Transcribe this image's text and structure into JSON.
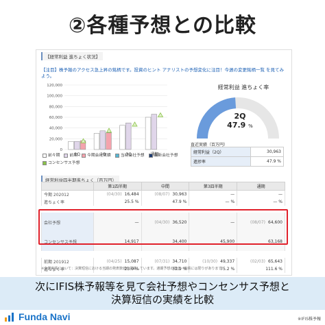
{
  "title": "②各種予想との比較",
  "panel": {
    "heading": "【経常利益 進ちょく状況】",
    "note": "【注目】株予報のアクセス急上昇の銘柄です。投資のヒント アナリストの予想変化に注目！今週の変更銘柄一覧 を見てみよう。",
    "bar_chart": {
      "yticks": [
        "120,000",
        "100,000",
        "80,000",
        "60,000",
        "40,000",
        "20,000",
        "0"
      ],
      "xticks": [
        "1Q",
        "2Q",
        "3Q",
        "通期"
      ]
    },
    "legend": [
      {
        "label": "前々期",
        "color": "#ffffff"
      },
      {
        "label": "前期",
        "color": "#e0d6ea"
      },
      {
        "label": "今期会社実績",
        "color": "#f4a3ad"
      },
      {
        "label": "当初会社予想",
        "color": "#57b7d4"
      },
      {
        "label": "最新会社予想",
        "color": "#1f3e73"
      },
      {
        "label": "コンセンサス予想",
        "color": "#8bc34a"
      }
    ],
    "gauge": {
      "title": "経常利益 進ちょく率",
      "quarter": "2Q",
      "value": "47.9",
      "unit": "%",
      "fraction": 0.479,
      "fill": "#6a9bdc",
      "track": "#e6e6e6"
    },
    "progress": {
      "heading": "直近実績（百万円）",
      "rows": [
        {
          "key": "経常利益（2Q）",
          "value": "30,963"
        },
        {
          "key": "進捗率",
          "value": "47.9 %"
        }
      ]
    },
    "quarter_table": {
      "heading": "経常利益四半期進ちょく（百万円）",
      "columns": [
        "",
        "第1四半期",
        "中間",
        "第3四半期",
        "通期"
      ],
      "rows": [
        {
          "label": "今期 202012",
          "cells": [
            [
              "(04/30)",
              "16,484"
            ],
            [
              "(08/07)",
              "30,963"
            ],
            [
              "",
              "—"
            ],
            [
              "",
              "—"
            ]
          ]
        },
        {
          "label": "進ちょく率",
          "cells": [
            [
              "",
              "25.5 %"
            ],
            [
              "",
              "47.9 %"
            ],
            [
              "",
              "— %"
            ],
            [
              "",
              "— %"
            ]
          ]
        },
        {
          "label": "会社予想",
          "cells": [
            [
              "",
              "—"
            ],
            [
              "(04/30)",
              "36,520"
            ],
            [
              "",
              "—"
            ],
            [
              "(08/07)",
              "64,600"
            ]
          ]
        },
        {
          "label": "コンセンサス予想",
          "cells": [
            [
              "",
              "14,917"
            ],
            [
              "",
              "34,400"
            ],
            [
              "",
              "45,900"
            ],
            [
              "",
              "63,168"
            ]
          ]
        },
        {
          "label": "前期 201912",
          "cells": [
            [
              "(04/25)",
              "15,087"
            ],
            [
              "(07/31)",
              "34,710"
            ],
            [
              "(10/30)",
              "49,337"
            ],
            [
              "(02/03)",
              "65,643"
            ]
          ]
        },
        {
          "label": "進ちょく率",
          "cells": [
            [
              "",
              "23.0 %"
            ],
            [
              "",
              "52.9 %"
            ],
            [
              "",
              "75.2 %"
            ],
            [
              "",
              "111.6 %"
            ]
          ]
        }
      ]
    },
    "footnote": "※企業実績について：決算短信における当期の発表数値を掲載しています。通期予想の修正・実績には限りがあります。"
  },
  "caption": {
    "line1": "次にIFIS株予報等を見て会社予想やコンセンサス予想と",
    "line2": "決算短信の実績を比較"
  },
  "logo": {
    "text": "Funda Navi"
  },
  "copyright": "※IFIS株予報"
}
